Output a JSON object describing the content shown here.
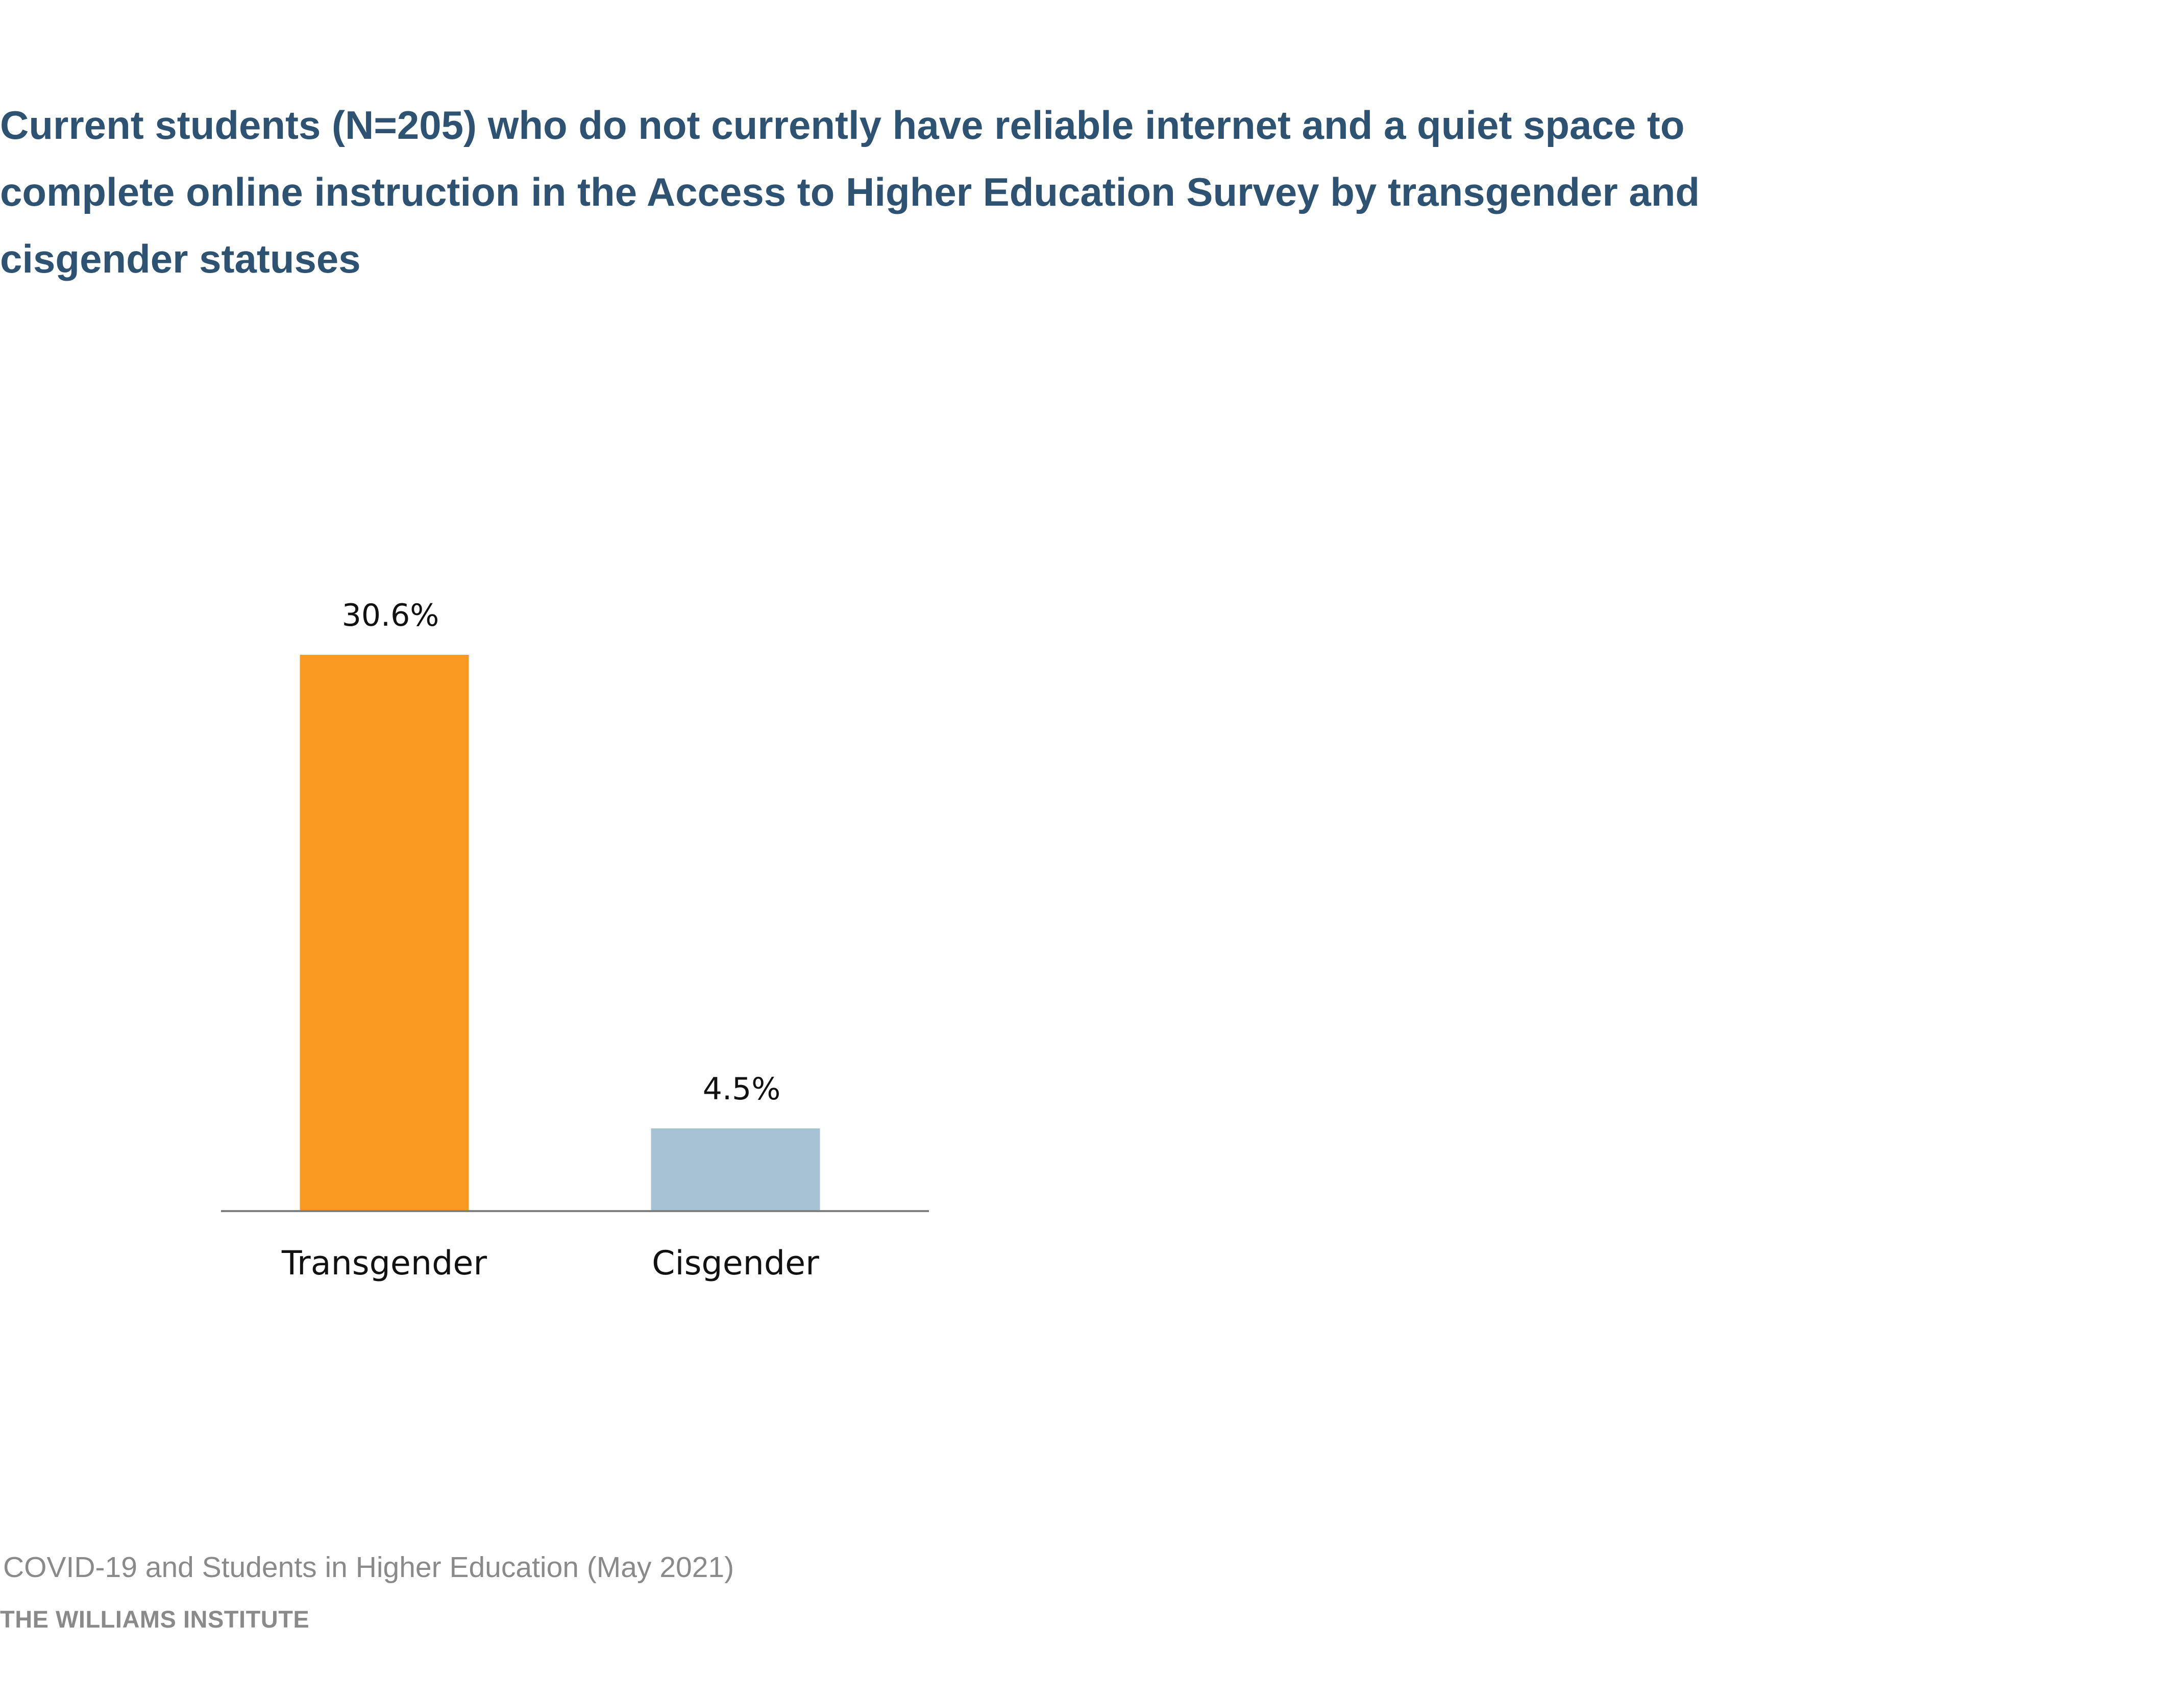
{
  "chart_data": {
    "type": "bar",
    "title": "Current students (N=205) who do not currently have reliable internet and a quiet space to complete online instruction in the Access to Higher Education Survey by transgender and cisgender statuses",
    "categories": [
      "Transgender",
      "Cisgender"
    ],
    "values": [
      30.6,
      4.5
    ],
    "value_labels": [
      "30.6%",
      "4.5%"
    ],
    "colors": [
      "#f79a1f",
      "#a7c2d3"
    ],
    "xlabel": "",
    "ylabel": "",
    "ylim": [
      0,
      30.6
    ],
    "grid": false,
    "legend": "none"
  },
  "footer": {
    "source": "COVID-19 and Students in Higher Education (May 2021)",
    "brand": "THE WILLIAMS INSTITUTE"
  }
}
